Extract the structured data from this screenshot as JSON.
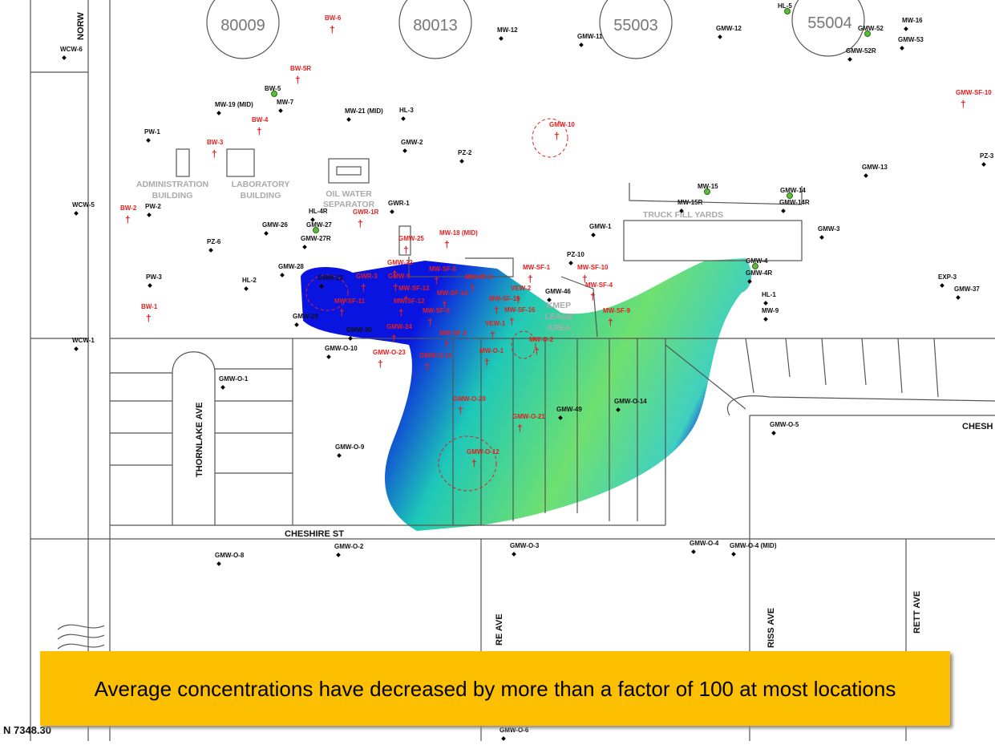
{
  "tanks": [
    "80009",
    "80013",
    "55003",
    "55004"
  ],
  "buildings": [
    [
      "ADMINISTRATION",
      "BUILDING"
    ],
    [
      "LABORATORY",
      "BUILDING"
    ],
    [
      "OIL WATER",
      "SEPARATOR"
    ],
    [
      "TRUCK FILL YARDS"
    ],
    [
      "KMEP",
      "LEASE",
      "AREA"
    ]
  ],
  "streets": [
    "NORW",
    "THORNLAKE AVE",
    "CHESHIRE ST",
    "CHESH",
    "RE AVE",
    "RISS AVE",
    "RETT AVE"
  ],
  "wells": [
    "WCW-6",
    "PW-1",
    "WCW-5",
    "PW-2",
    "PZ-6",
    "PW-3",
    "HL-2",
    "WCW-1",
    "MW-19 (MID)",
    "MW-7",
    "MW-21 (MID)",
    "HL-3",
    "GMW-2",
    "PZ-2",
    "HL-4R",
    "GMW-26",
    "GMW-28",
    "GMW-29",
    "GMW-30",
    "GMW-23",
    "GMW-O-10",
    "GMW-O-1",
    "GMW-O-9",
    "GMW-O-8",
    "GMW-O-2",
    "GMW-O-3",
    "GMW-O-4",
    "GMW-O-4 (MID)",
    "GMW-O-6",
    "GMW-O-5",
    "GMW-49",
    "GMW-O-14",
    "GMW-46",
    "PZ-10",
    "GMW-1",
    "MW-12",
    "GMW-11",
    "GMW-12",
    "MW-16",
    "GMW-53",
    "GMW-52R",
    "GMW-13",
    "PZ-3",
    "GMW-3",
    "HL-1",
    "MW-9",
    "EXP-3",
    "GMW-37",
    "GMW-4R",
    "GMW-14R",
    "MW-15R",
    "GWR-1",
    "GMW-27R",
    "BW-5",
    "GMW-27",
    "GMW-14",
    "MW-15",
    "GMW-4",
    "GMW-52",
    "HL-5",
    "BW-6",
    "BW-5R",
    "BW-4",
    "BW-3",
    "BW-2",
    "BW-1",
    "GMW-10",
    "GWR-1R",
    "GMW-25",
    "MW-18 (MID)",
    "GMW-22",
    "GWR-3",
    "GMW-9",
    "MW-SF-5",
    "MW-SF-3",
    "MW-SF-13",
    "MW-SF-14",
    "MW-SF-15",
    "MW-SF-11",
    "MW-SF-12",
    "MW-SF-6",
    "MW-SF-16",
    "GMW-24",
    "MW-SF-2",
    "VEW-1",
    "VEW-2",
    "MW-SF-1",
    "MW-SF-10",
    "MW-SF-4",
    "MW-SF-9",
    "MW-O-1",
    "MW-O-2",
    "GMW-O-23",
    "GMW-O-11",
    "GMW-O-20",
    "GMW-O-21",
    "GMW-O-12",
    "GMW-SF-10"
  ],
  "coordinate": "N 7348.30",
  "caption": "Average concentrations have decreased by more than a factor of 100 at most locations"
}
